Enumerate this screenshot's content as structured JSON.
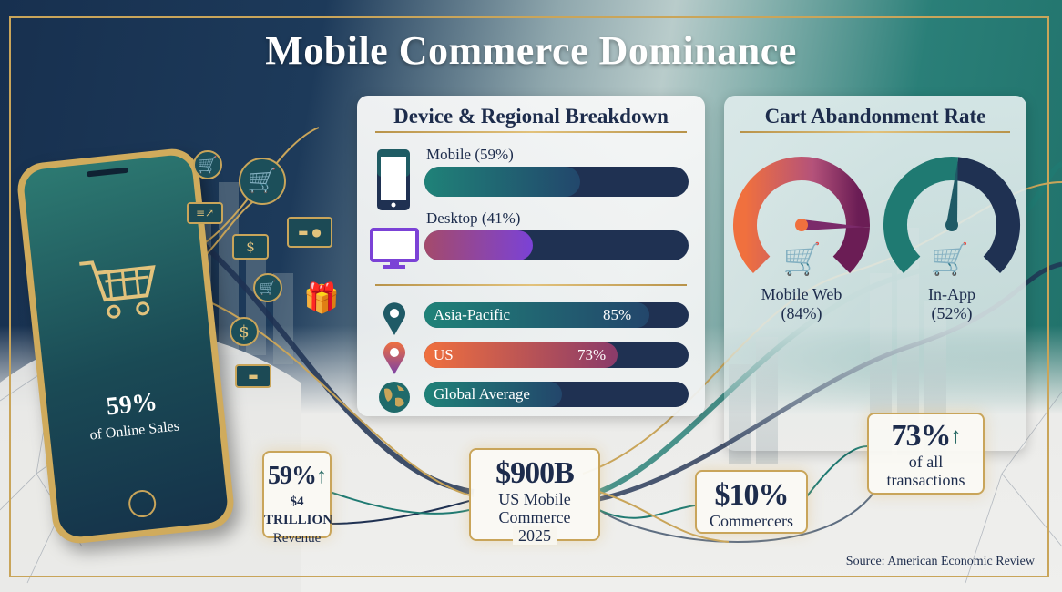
{
  "title": "Mobile Commerce Dominance",
  "device_panel": {
    "title": "Device & Regional Breakdown",
    "devices": [
      {
        "label": "Mobile (59%)",
        "value": 59,
        "icon": "smartphone-icon",
        "colors": [
          "#1f8278",
          "#22476c"
        ]
      },
      {
        "label": "Desktop (41%)",
        "value": 41,
        "icon": "desktop-monitor-icon",
        "colors": [
          "#a44a6b",
          "#7b42d6"
        ]
      }
    ],
    "regions": [
      {
        "label": "Asia-Pacific",
        "value_label": "85%",
        "value": 85,
        "icon": "map-pin-icon",
        "colors": [
          "#1f8278",
          "#23466b"
        ]
      },
      {
        "label": "US",
        "value_label": "73%",
        "value": 73,
        "icon": "map-pin-icon",
        "colors": [
          "#f0703e",
          "#8a3b6a"
        ]
      },
      {
        "label": "Global Average",
        "value": 52,
        "icon": "globe-icon",
        "colors": [
          "#1f8278",
          "#23466b"
        ]
      }
    ]
  },
  "cart_panel": {
    "title": "Cart Abandonment Rate",
    "gauges": [
      {
        "label": "Mobile Web",
        "value_label": "(84%)",
        "value": 84,
        "icon": "broken-cart-icon",
        "colors": [
          "#f0703e",
          "#8f4a9c",
          "#6b1d55"
        ]
      },
      {
        "label": "In-App",
        "value_label": "(52%)",
        "value": 52,
        "icon": "cart-check-icon",
        "colors": [
          "#1f7a72",
          "#1f3152"
        ]
      }
    ]
  },
  "phone": {
    "value": "59%",
    "caption": "of Online Sales"
  },
  "stats": [
    {
      "value": "59%",
      "line1": "$4 TRILLION",
      "line2": "Revenue",
      "trend": "up"
    },
    {
      "value": "$900B",
      "line1": "US Mobile",
      "line2": "Commerce",
      "line3": "2025"
    },
    {
      "value": "$10%",
      "line1": "Commercers"
    },
    {
      "value": "73%",
      "line1": "of all",
      "line2": "transactions",
      "trend": "up"
    }
  ],
  "source": "Source: American Economic Review",
  "colors": {
    "navy": "#1d2c4c",
    "gold": "#c9a55a",
    "teal": "#1f7a72"
  }
}
